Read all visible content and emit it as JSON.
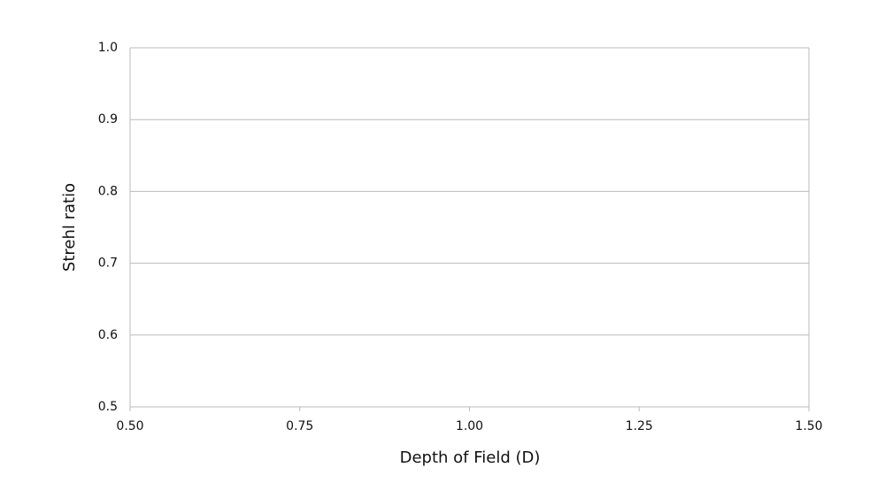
{
  "chart_data": {
    "type": "line",
    "x_label": "Depth of Field (D)",
    "y_label": "Strehl ratio",
    "xlim": [
      0.5,
      1.5
    ],
    "xticks": [
      {
        "value": 0.5,
        "label": "0.50"
      },
      {
        "value": 0.75,
        "label": "0.75"
      },
      {
        "value": 1,
        "label": "1.00"
      },
      {
        "value": 1.25,
        "label": "1.25"
      },
      {
        "value": 1.5,
        "label": "1.50"
      }
    ],
    "ylim": [
      0.5,
      1
    ],
    "yticks": [
      0.5,
      0.6,
      0.7,
      0.8,
      0.9,
      {
        "value": 1,
        "label": "1.0"
      }
    ],
    "grid": true
  }
}
